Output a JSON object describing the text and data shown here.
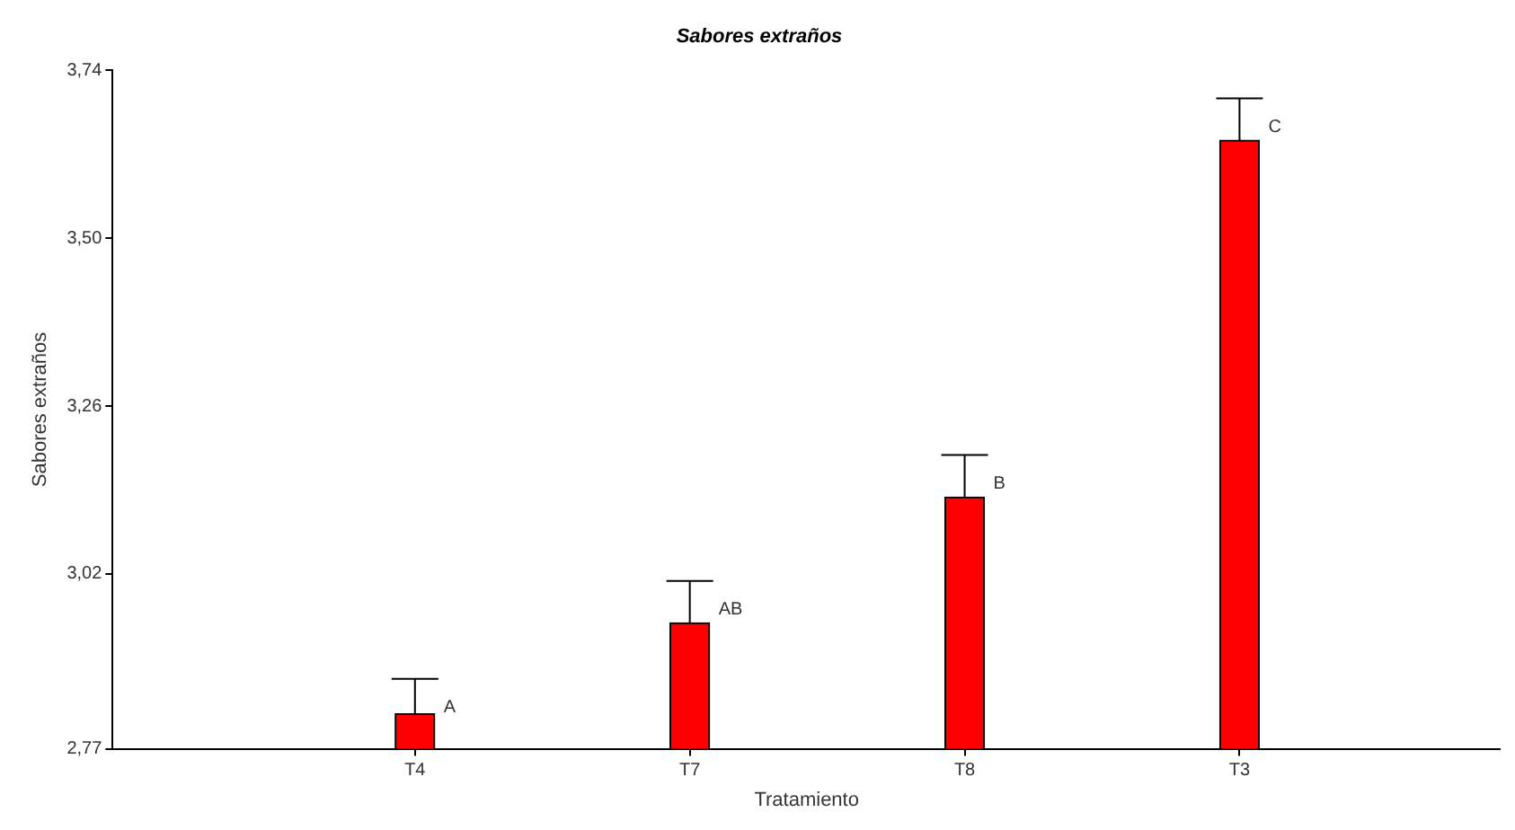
{
  "chart_data": {
    "type": "bar",
    "title": "Sabores extraños",
    "xlabel": "Tratamiento",
    "ylabel": "Sabores extraños",
    "categories": [
      "T4",
      "T7",
      "T8",
      "T3"
    ],
    "values": [
      2.82,
      2.95,
      3.13,
      3.64
    ],
    "errors": [
      [
        2.82,
        2.87
      ],
      [
        2.95,
        3.01
      ],
      [
        3.13,
        3.19
      ],
      [
        3.64,
        3.7
      ]
    ],
    "color": "#ff0000",
    "ylim": [
      2.77,
      3.74
    ],
    "yticks": [
      {
        "value": 2.77,
        "label": "2,77"
      },
      {
        "value": 3.02,
        "label": "3,02"
      },
      {
        "value": 3.26,
        "label": "3,26"
      },
      {
        "value": 3.5,
        "label": "3,50"
      },
      {
        "value": 3.74,
        "label": "3,74"
      }
    ],
    "annotations": [
      {
        "text": "A",
        "x": "T4",
        "y": 2.87
      },
      {
        "text": "AB",
        "x": "T7",
        "y": 3.01
      },
      {
        "text": "B",
        "x": "T8",
        "y": 3.19
      },
      {
        "text": "C",
        "x": "T3",
        "y": 3.7
      }
    ],
    "grid": false,
    "legend": false
  }
}
